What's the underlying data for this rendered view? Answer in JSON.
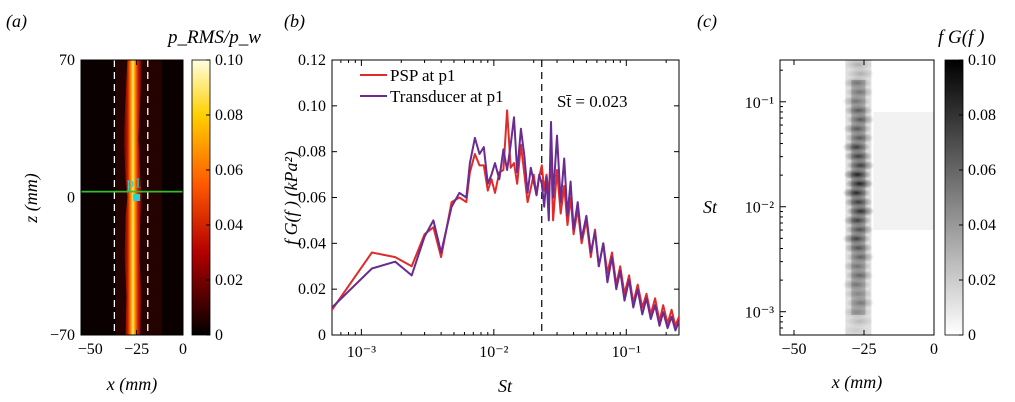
{
  "panels": [
    {
      "label": "(a)",
      "chart_data": {
        "type": "heatmap",
        "colorbar_title": "p_RMS/p_w",
        "colorbar_ticks": [
          0,
          0.02,
          0.04,
          0.06,
          0.08,
          0.1
        ],
        "colorbar_tick_labels": [
          "0",
          "0.02",
          "0.04",
          "0.06",
          "0.08",
          "0.10"
        ],
        "clim": [
          0,
          0.1
        ],
        "colormap": "hot",
        "xlabel": "x (mm)",
        "ylabel": "z (mm)",
        "xlim": [
          -55,
          0
        ],
        "ylim": [
          70,
          -70
        ],
        "x_ticks": [
          -50,
          -25,
          0
        ],
        "x_tick_labels": [
          "−50",
          "−25",
          "0"
        ],
        "y_ticks": [
          -70,
          0,
          70
        ],
        "y_tick_labels": [
          "−70",
          "0",
          "70"
        ],
        "streak_center_x": [
          [
            -70,
            -27
          ],
          [
            -50,
            -26.5
          ],
          [
            -30,
            -27.5
          ],
          [
            -10,
            -27
          ],
          [
            0,
            -26
          ],
          [
            10,
            -27
          ],
          [
            30,
            -28
          ],
          [
            50,
            -27
          ],
          [
            70,
            -26
          ]
        ],
        "streak_halfwidth_mm": 4,
        "peak_value": 0.1,
        "dashed_lines_x": [
          -37,
          -19
        ],
        "reference_line_z": 3,
        "probe": {
          "label": "p1",
          "x": -25,
          "z": 0
        },
        "line_color": "#2fbf2f",
        "probe_color": "#27d3cf"
      }
    },
    {
      "label": "(b)",
      "chart_data": {
        "type": "line",
        "xscale": "log",
        "xlim": [
          0.0006,
          0.25
        ],
        "ylim": [
          0,
          0.12
        ],
        "xlabel": "St",
        "ylabel": "f G(f ) (kPa²)",
        "x_tick_labels": [
          "10⁻³",
          "10⁻²",
          "10⁻¹"
        ],
        "y_ticks": [
          0,
          0.02,
          0.04,
          0.06,
          0.08,
          0.1,
          0.12
        ],
        "y_tick_labels": [
          "0",
          "0.02",
          "0.04",
          "0.06",
          "0.08",
          "0.10",
          "0.12"
        ],
        "vline": {
          "x": 0.023,
          "label": "St̄ = 0.023"
        },
        "legend": {
          "placement": "top-left"
        },
        "series": [
          {
            "name": "PSP at p1",
            "color": "#e02b2b",
            "points": [
              [
                0.0006,
                0.011
              ],
              [
                0.0012,
                0.036
              ],
              [
                0.0018,
                0.034
              ],
              [
                0.0024,
                0.03
              ],
              [
                0.003,
                0.044
              ],
              [
                0.0035,
                0.047
              ],
              [
                0.004,
                0.034
              ],
              [
                0.0048,
                0.058
              ],
              [
                0.0055,
                0.06
              ],
              [
                0.0062,
                0.058
              ],
              [
                0.0066,
                0.071
              ],
              [
                0.0072,
                0.079
              ],
              [
                0.0078,
                0.074
              ],
              [
                0.0084,
                0.074
              ],
              [
                0.009,
                0.063
              ],
              [
                0.0096,
                0.068
              ],
              [
                0.0102,
                0.062
              ],
              [
                0.011,
                0.071
              ],
              [
                0.0118,
                0.072
              ],
              [
                0.0126,
                0.098
              ],
              [
                0.0134,
                0.073
              ],
              [
                0.0142,
                0.075
              ],
              [
                0.015,
                0.066
              ],
              [
                0.016,
                0.083
              ],
              [
                0.017,
                0.07
              ],
              [
                0.018,
                0.058
              ],
              [
                0.019,
                0.064
              ],
              [
                0.02,
                0.07
              ],
              [
                0.021,
                0.061
              ],
              [
                0.022,
                0.069
              ],
              [
                0.023,
                0.074
              ],
              [
                0.024,
                0.063
              ],
              [
                0.025,
                0.07
              ],
              [
                0.026,
                0.061
              ],
              [
                0.027,
                0.08
              ],
              [
                0.028,
                0.05
              ],
              [
                0.03,
                0.072
              ],
              [
                0.032,
                0.053
              ],
              [
                0.034,
                0.065
              ],
              [
                0.036,
                0.048
              ],
              [
                0.038,
                0.06
              ],
              [
                0.04,
                0.044
              ],
              [
                0.043,
                0.055
              ],
              [
                0.046,
                0.04
              ],
              [
                0.05,
                0.05
              ],
              [
                0.054,
                0.034
              ],
              [
                0.058,
                0.046
              ],
              [
                0.062,
                0.03
              ],
              [
                0.067,
                0.04
              ],
              [
                0.072,
                0.027
              ],
              [
                0.078,
                0.036
              ],
              [
                0.084,
                0.022
              ],
              [
                0.09,
                0.03
              ],
              [
                0.097,
                0.018
              ],
              [
                0.105,
                0.026
              ],
              [
                0.113,
                0.014
              ],
              [
                0.122,
                0.022
              ],
              [
                0.132,
                0.012
              ],
              [
                0.142,
                0.018
              ],
              [
                0.153,
                0.009
              ],
              [
                0.165,
                0.016
              ],
              [
                0.178,
                0.006
              ],
              [
                0.19,
                0.013
              ],
              [
                0.205,
                0.005
              ],
              [
                0.22,
                0.011
              ],
              [
                0.235,
                0.004
              ],
              [
                0.25,
                0.008
              ]
            ]
          },
          {
            "name": "Transducer at p1",
            "color": "#6a2c91",
            "points": [
              [
                0.0006,
                0.012
              ],
              [
                0.0012,
                0.029
              ],
              [
                0.0018,
                0.032
              ],
              [
                0.0024,
                0.026
              ],
              [
                0.003,
                0.043
              ],
              [
                0.0035,
                0.05
              ],
              [
                0.004,
                0.036
              ],
              [
                0.0048,
                0.056
              ],
              [
                0.0055,
                0.062
              ],
              [
                0.0062,
                0.06
              ],
              [
                0.0066,
                0.075
              ],
              [
                0.0072,
                0.086
              ],
              [
                0.0078,
                0.079
              ],
              [
                0.0084,
                0.082
              ],
              [
                0.009,
                0.066
              ],
              [
                0.0096,
                0.07
              ],
              [
                0.0102,
                0.075
              ],
              [
                0.011,
                0.068
              ],
              [
                0.0118,
                0.081
              ],
              [
                0.0126,
                0.072
              ],
              [
                0.0134,
                0.083
              ],
              [
                0.0142,
                0.095
              ],
              [
                0.015,
                0.071
              ],
              [
                0.016,
                0.09
              ],
              [
                0.017,
                0.078
              ],
              [
                0.018,
                0.062
              ],
              [
                0.019,
                0.073
              ],
              [
                0.02,
                0.067
              ],
              [
                0.021,
                0.061
              ],
              [
                0.022,
                0.07
              ],
              [
                0.023,
                0.066
              ],
              [
                0.024,
                0.056
              ],
              [
                0.025,
                0.069
              ],
              [
                0.026,
                0.05
              ],
              [
                0.027,
                0.093
              ],
              [
                0.028,
                0.06
              ],
              [
                0.03,
                0.087
              ],
              [
                0.032,
                0.058
              ],
              [
                0.034,
                0.077
              ],
              [
                0.036,
                0.052
              ],
              [
                0.038,
                0.067
              ],
              [
                0.04,
                0.046
              ],
              [
                0.043,
                0.058
              ],
              [
                0.046,
                0.042
              ],
              [
                0.05,
                0.052
              ],
              [
                0.054,
                0.036
              ],
              [
                0.058,
                0.045
              ],
              [
                0.062,
                0.03
              ],
              [
                0.067,
                0.04
              ],
              [
                0.072,
                0.023
              ],
              [
                0.078,
                0.034
              ],
              [
                0.084,
                0.02
              ],
              [
                0.09,
                0.028
              ],
              [
                0.097,
                0.015
              ],
              [
                0.105,
                0.024
              ],
              [
                0.113,
                0.012
              ],
              [
                0.122,
                0.02
              ],
              [
                0.132,
                0.009
              ],
              [
                0.142,
                0.016
              ],
              [
                0.153,
                0.007
              ],
              [
                0.165,
                0.013
              ],
              [
                0.178,
                0.004
              ],
              [
                0.19,
                0.01
              ],
              [
                0.205,
                0.003
              ],
              [
                0.22,
                0.008
              ],
              [
                0.235,
                0.002
              ],
              [
                0.25,
                0.006
              ]
            ]
          }
        ]
      }
    },
    {
      "label": "(c)",
      "chart_data": {
        "type": "heatmap",
        "colorbar_title": "f G(f )",
        "colorbar_ticks": [
          0,
          0.02,
          0.04,
          0.06,
          0.08,
          0.1
        ],
        "colorbar_tick_labels": [
          "0",
          "0.02",
          "0.04",
          "0.06",
          "0.08",
          "0.10"
        ],
        "clim": [
          0,
          0.1
        ],
        "colormap": "gray_r",
        "xlabel": "x (mm)",
        "ylabel": "St",
        "xlim": [
          -55,
          0
        ],
        "ylim": [
          0.0006,
          0.25
        ],
        "yscale": "log",
        "x_ticks": [
          -50,
          -25,
          0
        ],
        "x_tick_labels": [
          "−50",
          "−25",
          "0"
        ],
        "y_tick_labels": [
          "10⁻³",
          "10⁻²",
          "10⁻¹"
        ],
        "band_center_x": -27,
        "band_peak_st": 0.015
      }
    }
  ]
}
